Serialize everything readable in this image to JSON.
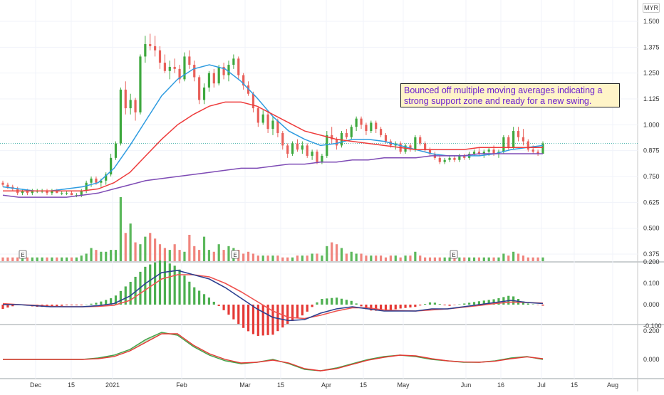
{
  "currency": "MYR",
  "annotation": "Bounced off multiple moving averages indicating a strong support zone and ready for a new swing.",
  "colors": {
    "up": "#26a69a",
    "candle_up": "#3ea83e",
    "candle_down": "#e8605a",
    "ma_fast": "#2e9be0",
    "ma_mid": "#ee3b3b",
    "ma_slow": "#7e4bb5",
    "macd_line": "#2b3f8f",
    "signal_line": "#ef5350",
    "last_price_line": "#26a69a",
    "annotation_text": "#6a1fd0",
    "annotation_bg": "#fff4c8"
  },
  "earnings_marker": "E",
  "chart_data": [
    {
      "type": "candlestick",
      "panel": "price",
      "x_tick_labels": [
        "Dec",
        "15",
        "2021",
        "Feb",
        "Mar",
        "15",
        "Apr",
        "15",
        "May",
        "Jun",
        "16",
        "Jul",
        "15",
        "Aug"
      ],
      "y_tick_labels": [
        "1.500",
        "1.375",
        "1.250",
        "1.125",
        "1.000",
        "0.875",
        "0.750",
        "0.625",
        "0.500",
        "0.375"
      ],
      "ylim": [
        0.35,
        1.52
      ],
      "ohlc": [
        [
          0.72,
          0.73,
          0.7,
          0.71
        ],
        [
          0.71,
          0.72,
          0.69,
          0.7
        ],
        [
          0.7,
          0.71,
          0.68,
          0.69
        ],
        [
          0.69,
          0.7,
          0.66,
          0.67
        ],
        [
          0.67,
          0.69,
          0.66,
          0.68
        ],
        [
          0.68,
          0.69,
          0.66,
          0.67
        ],
        [
          0.67,
          0.69,
          0.66,
          0.68
        ],
        [
          0.68,
          0.69,
          0.67,
          0.68
        ],
        [
          0.68,
          0.69,
          0.67,
          0.68
        ],
        [
          0.68,
          0.69,
          0.66,
          0.67
        ],
        [
          0.67,
          0.69,
          0.66,
          0.68
        ],
        [
          0.68,
          0.69,
          0.67,
          0.67
        ],
        [
          0.67,
          0.68,
          0.66,
          0.67
        ],
        [
          0.67,
          0.68,
          0.66,
          0.67
        ],
        [
          0.67,
          0.68,
          0.66,
          0.66
        ],
        [
          0.66,
          0.67,
          0.65,
          0.66
        ],
        [
          0.66,
          0.69,
          0.65,
          0.68
        ],
        [
          0.68,
          0.73,
          0.67,
          0.72
        ],
        [
          0.72,
          0.75,
          0.7,
          0.74
        ],
        [
          0.74,
          0.75,
          0.71,
          0.72
        ],
        [
          0.72,
          0.74,
          0.7,
          0.73
        ],
        [
          0.73,
          0.77,
          0.71,
          0.76
        ],
        [
          0.76,
          0.86,
          0.75,
          0.84
        ],
        [
          0.84,
          0.92,
          0.83,
          0.91
        ],
        [
          0.91,
          1.18,
          0.9,
          1.17
        ],
        [
          1.17,
          1.21,
          1.05,
          1.08
        ],
        [
          1.08,
          1.15,
          1.05,
          1.12
        ],
        [
          1.12,
          1.13,
          1.02,
          1.06
        ],
        [
          1.06,
          1.34,
          1.05,
          1.33
        ],
        [
          1.33,
          1.43,
          1.3,
          1.39
        ],
        [
          1.39,
          1.44,
          1.36,
          1.38
        ],
        [
          1.38,
          1.43,
          1.33,
          1.36
        ],
        [
          1.36,
          1.38,
          1.27,
          1.3
        ],
        [
          1.3,
          1.34,
          1.25,
          1.26
        ],
        [
          1.26,
          1.31,
          1.22,
          1.28
        ],
        [
          1.28,
          1.32,
          1.25,
          1.27
        ],
        [
          1.27,
          1.29,
          1.2,
          1.22
        ],
        [
          1.22,
          1.35,
          1.21,
          1.33
        ],
        [
          1.33,
          1.36,
          1.27,
          1.29
        ],
        [
          1.29,
          1.31,
          1.21,
          1.23
        ],
        [
          1.23,
          1.24,
          1.1,
          1.12
        ],
        [
          1.12,
          1.2,
          1.1,
          1.18
        ],
        [
          1.18,
          1.26,
          1.16,
          1.25
        ],
        [
          1.25,
          1.27,
          1.18,
          1.2
        ],
        [
          1.2,
          1.29,
          1.19,
          1.28
        ],
        [
          1.28,
          1.3,
          1.22,
          1.24
        ],
        [
          1.24,
          1.31,
          1.21,
          1.29
        ],
        [
          1.29,
          1.34,
          1.27,
          1.32
        ],
        [
          1.32,
          1.33,
          1.22,
          1.24
        ],
        [
          1.24,
          1.25,
          1.17,
          1.19
        ],
        [
          1.19,
          1.21,
          1.14,
          1.15
        ],
        [
          1.15,
          1.16,
          1.06,
          1.08
        ],
        [
          1.08,
          1.09,
          0.99,
          1.01
        ],
        [
          1.01,
          1.07,
          1.0,
          1.05
        ],
        [
          1.05,
          1.07,
          0.96,
          0.98
        ],
        [
          0.98,
          1.04,
          0.95,
          1.02
        ],
        [
          1.02,
          1.03,
          0.94,
          0.96
        ],
        [
          0.96,
          0.97,
          0.88,
          0.9
        ],
        [
          0.9,
          0.91,
          0.84,
          0.86
        ],
        [
          0.86,
          0.92,
          0.85,
          0.91
        ],
        [
          0.91,
          0.93,
          0.87,
          0.88
        ],
        [
          0.88,
          0.92,
          0.86,
          0.9
        ],
        [
          0.9,
          0.91,
          0.84,
          0.85
        ],
        [
          0.85,
          0.88,
          0.83,
          0.87
        ],
        [
          0.87,
          0.88,
          0.81,
          0.82
        ],
        [
          0.82,
          0.86,
          0.81,
          0.85
        ],
        [
          0.85,
          0.97,
          0.84,
          0.95
        ],
        [
          0.95,
          0.99,
          0.91,
          0.93
        ],
        [
          0.93,
          0.94,
          0.88,
          0.9
        ],
        [
          0.9,
          0.97,
          0.89,
          0.96
        ],
        [
          0.96,
          0.98,
          0.93,
          0.94
        ],
        [
          0.94,
          1.0,
          0.93,
          0.99
        ],
        [
          0.99,
          1.04,
          0.97,
          1.03
        ],
        [
          1.03,
          1.04,
          0.98,
          1.0
        ],
        [
          1.0,
          1.01,
          0.95,
          0.97
        ],
        [
          0.97,
          1.02,
          0.96,
          1.01
        ],
        [
          1.01,
          1.02,
          0.96,
          0.98
        ],
        [
          0.98,
          0.99,
          0.94,
          0.95
        ],
        [
          0.95,
          0.96,
          0.91,
          0.92
        ],
        [
          0.92,
          0.93,
          0.89,
          0.9
        ],
        [
          0.9,
          0.92,
          0.88,
          0.91
        ],
        [
          0.91,
          0.92,
          0.86,
          0.87
        ],
        [
          0.87,
          0.91,
          0.86,
          0.9
        ],
        [
          0.9,
          0.91,
          0.87,
          0.88
        ],
        [
          0.88,
          0.95,
          0.87,
          0.94
        ],
        [
          0.94,
          0.95,
          0.9,
          0.91
        ],
        [
          0.91,
          0.92,
          0.87,
          0.88
        ],
        [
          0.88,
          0.89,
          0.85,
          0.86
        ],
        [
          0.86,
          0.87,
          0.83,
          0.84
        ],
        [
          0.84,
          0.85,
          0.81,
          0.82
        ],
        [
          0.82,
          0.84,
          0.81,
          0.83
        ],
        [
          0.83,
          0.85,
          0.82,
          0.84
        ],
        [
          0.84,
          0.85,
          0.82,
          0.83
        ],
        [
          0.83,
          0.86,
          0.82,
          0.85
        ],
        [
          0.85,
          0.86,
          0.83,
          0.84
        ],
        [
          0.84,
          0.87,
          0.83,
          0.86
        ],
        [
          0.86,
          0.88,
          0.85,
          0.87
        ],
        [
          0.87,
          0.89,
          0.85,
          0.86
        ],
        [
          0.86,
          0.88,
          0.84,
          0.87
        ],
        [
          0.87,
          0.89,
          0.85,
          0.88
        ],
        [
          0.88,
          0.9,
          0.85,
          0.86
        ],
        [
          0.86,
          0.88,
          0.84,
          0.87
        ],
        [
          0.87,
          0.95,
          0.86,
          0.94
        ],
        [
          0.94,
          0.95,
          0.88,
          0.89
        ],
        [
          0.89,
          0.99,
          0.88,
          0.97
        ],
        [
          0.97,
          0.99,
          0.92,
          0.94
        ],
        [
          0.94,
          0.98,
          0.9,
          0.92
        ],
        [
          0.92,
          0.93,
          0.87,
          0.88
        ],
        [
          0.88,
          0.9,
          0.86,
          0.87
        ],
        [
          0.87,
          0.88,
          0.85,
          0.86
        ],
        [
          0.86,
          0.92,
          0.86,
          0.91
        ]
      ],
      "moving_averages": [
        {
          "values": [
            0.7,
            0.69,
            0.68,
            0.68,
            0.69,
            0.7,
            0.72,
            0.79,
            0.9,
            1.02,
            1.14,
            1.22,
            1.27,
            1.29,
            1.27,
            1.21,
            1.13,
            1.04,
            0.97,
            0.93,
            0.9,
            0.91,
            0.93,
            0.93,
            0.92,
            0.9,
            0.88,
            0.86,
            0.85,
            0.85,
            0.85,
            0.86,
            0.88,
            0.89,
            0.9
          ]
        },
        {
          "values": [
            0.68,
            0.68,
            0.68,
            0.68,
            0.68,
            0.68,
            0.69,
            0.72,
            0.77,
            0.85,
            0.93,
            1.0,
            1.05,
            1.09,
            1.11,
            1.11,
            1.09,
            1.05,
            1.01,
            0.97,
            0.95,
            0.93,
            0.92,
            0.91,
            0.9,
            0.89,
            0.88,
            0.88,
            0.88,
            0.88,
            0.89,
            0.89,
            0.89,
            0.89,
            0.89
          ]
        },
        {
          "values": [
            0.66,
            0.65,
            0.65,
            0.65,
            0.65,
            0.66,
            0.67,
            0.69,
            0.71,
            0.73,
            0.74,
            0.75,
            0.76,
            0.77,
            0.78,
            0.79,
            0.79,
            0.8,
            0.81,
            0.81,
            0.82,
            0.82,
            0.83,
            0.83,
            0.84,
            0.84,
            0.84,
            0.85,
            0.85,
            0.85,
            0.86,
            0.86,
            0.86,
            0.86,
            0.86
          ]
        }
      ]
    },
    {
      "type": "bar",
      "panel": "volume",
      "values": [
        2,
        2,
        2,
        2,
        2,
        2,
        2,
        2,
        2,
        2,
        2,
        2,
        2,
        2,
        2,
        2,
        3,
        4,
        7,
        6,
        5,
        5,
        6,
        6,
        34,
        15,
        20,
        10,
        9,
        13,
        15,
        12,
        9,
        7,
        6,
        9,
        6,
        5,
        14,
        8,
        6,
        13,
        6,
        5,
        9,
        6,
        8,
        7,
        6,
        4,
        5,
        4,
        3,
        3,
        3,
        3,
        3,
        2,
        2,
        2,
        3,
        3,
        3,
        4,
        4,
        3,
        8,
        10,
        9,
        7,
        4,
        5,
        4,
        4,
        3,
        3,
        3,
        3,
        2,
        3,
        3,
        2,
        3,
        3,
        5,
        3,
        2,
        2,
        2,
        2,
        2,
        2,
        2,
        2,
        2,
        2,
        2,
        2,
        2,
        2,
        2,
        2,
        4,
        3,
        5,
        4,
        3,
        2,
        2,
        2,
        2
      ]
    },
    {
      "type": "line",
      "panel": "macd",
      "y_tick_labels": [
        "0.200",
        "0.100",
        "0.000",
        "-0.100"
      ],
      "ylim": [
        -0.11,
        0.2
      ],
      "series": [
        {
          "values": [
            0,
            0,
            -0.005,
            -0.01,
            -0.01,
            -0.01,
            -0.005,
            0.005,
            0.04,
            0.1,
            0.15,
            0.16,
            0.14,
            0.12,
            0.08,
            0.03,
            -0.02,
            -0.06,
            -0.075,
            -0.07,
            -0.04,
            -0.02,
            -0.01,
            -0.02,
            -0.03,
            -0.03,
            -0.03,
            -0.02,
            -0.02,
            -0.01,
            0.0,
            0.01,
            0.02,
            0.01,
            0.005
          ]
        },
        {
          "values": [
            0.005,
            0,
            -0.003,
            -0.008,
            -0.01,
            -0.01,
            -0.008,
            -0.003,
            0.02,
            0.07,
            0.12,
            0.14,
            0.14,
            0.13,
            0.1,
            0.06,
            0.015,
            -0.03,
            -0.06,
            -0.065,
            -0.05,
            -0.03,
            -0.015,
            -0.015,
            -0.025,
            -0.028,
            -0.03,
            -0.025,
            -0.02,
            -0.012,
            -0.004,
            0.005,
            0.012,
            0.01,
            0.007
          ]
        }
      ]
    },
    {
      "type": "line",
      "panel": "oscillator",
      "y_tick_labels": [
        "0.200",
        "0.000"
      ],
      "ylim": [
        -0.11,
        0.22
      ],
      "series": [
        {
          "values": [
            0.0,
            0.0,
            0.0,
            0.0,
            0.0,
            0.0,
            0.01,
            0.03,
            0.07,
            0.14,
            0.19,
            0.17,
            0.09,
            0.03,
            -0.01,
            -0.03,
            -0.02,
            0.0,
            -0.03,
            -0.07,
            -0.08,
            -0.06,
            -0.03,
            0.0,
            0.02,
            0.03,
            0.02,
            0.0,
            -0.01,
            -0.02,
            -0.02,
            -0.01,
            0.01,
            0.02,
            0.0
          ]
        },
        {
          "values": [
            0.0,
            0.0,
            0.0,
            0.0,
            0.0,
            0.0,
            0.005,
            0.02,
            0.06,
            0.12,
            0.18,
            0.18,
            0.1,
            0.04,
            0.0,
            -0.025,
            -0.02,
            -0.005,
            -0.025,
            -0.065,
            -0.08,
            -0.065,
            -0.035,
            -0.005,
            0.015,
            0.03,
            0.025,
            0.005,
            -0.01,
            -0.018,
            -0.02,
            -0.012,
            0.005,
            0.018,
            0.005
          ]
        }
      ]
    }
  ]
}
